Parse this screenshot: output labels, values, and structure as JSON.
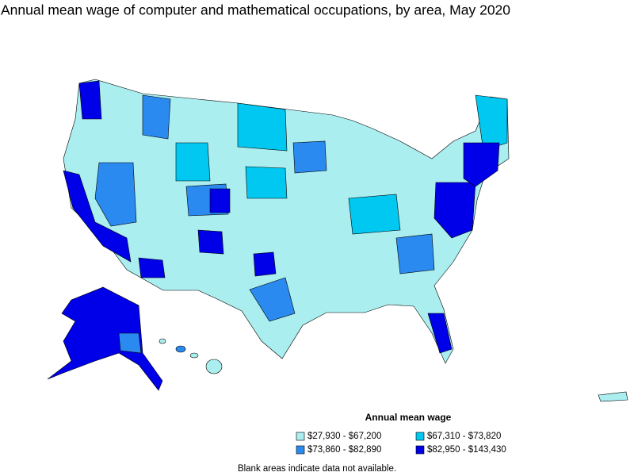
{
  "title": "Annual mean wage of computer and mathematical occupations, by area, May 2020",
  "legend": {
    "title": "Annual mean wage",
    "items": [
      {
        "label": "$27,930 - $67,200",
        "color": "#aaeef0"
      },
      {
        "label": "$67,310 - $73,820",
        "color": "#00c8f0"
      },
      {
        "label": "$73,860 - $82,890",
        "color": "#2a8af0"
      },
      {
        "label": "$82,950 - $143,430",
        "color": "#0000e8"
      }
    ]
  },
  "footnote": "Blank areas indicate data not available."
}
